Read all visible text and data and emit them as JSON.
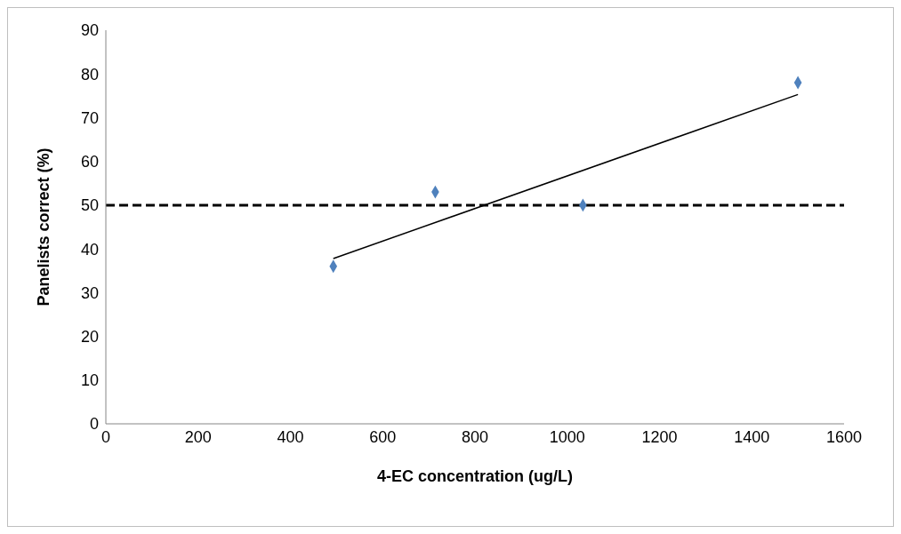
{
  "chart_data": {
    "type": "scatter",
    "xlabel": "4-EC concentration (ug/L)",
    "ylabel": "Panelists correct (%)",
    "xlim": [
      0,
      1600
    ],
    "xticks": [
      0,
      200,
      400,
      600,
      800,
      1000,
      1200,
      1400,
      1600
    ],
    "ylim": [
      0,
      90
    ],
    "yticks": [
      0,
      10,
      20,
      30,
      40,
      50,
      60,
      70,
      80,
      90
    ],
    "grid": false,
    "legend": false,
    "marker": "diamond",
    "x": [
      493,
      714,
      1034,
      1500
    ],
    "series": [
      {
        "color": "#4f81bd",
        "values": [
          36,
          53,
          50,
          78
        ]
      },
      {
        "type": "line",
        "color": "#000000",
        "x": [
          493,
          1500
        ],
        "values": [
          37.8,
          75.3
        ],
        "marker": "none",
        "line_style": "solid"
      }
    ],
    "ref_lines": [
      {
        "axis": "y",
        "value": 50,
        "color": "#000000",
        "line_style": "dashed"
      }
    ]
  }
}
